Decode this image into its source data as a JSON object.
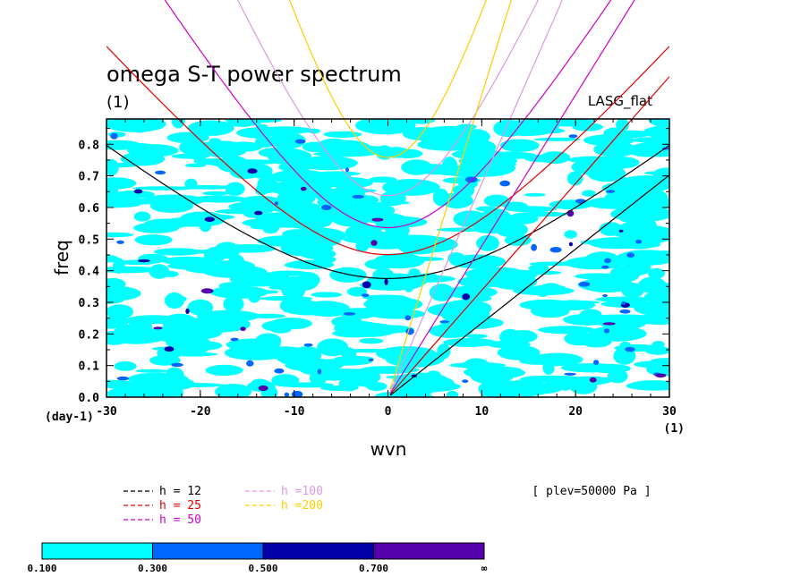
{
  "chart_data": {
    "type": "contour",
    "title": "omega S-T power spectrum",
    "subtitle": "(1)",
    "dataset_label": "LASG_flat",
    "xlabel": "wvn",
    "ylabel": "freq",
    "x_unit_label": "(1)",
    "y_unit_label": "(day-1)",
    "xlim": [
      -30,
      30
    ],
    "ylim": [
      0,
      0.88
    ],
    "x_ticks": [
      "-30",
      "-20",
      "-10",
      "0",
      "10",
      "20",
      "30"
    ],
    "y_ticks": [
      "0.0",
      "0.1",
      "0.2",
      "0.3",
      "0.4",
      "0.5",
      "0.6",
      "0.7",
      "0.8"
    ],
    "y_tick_values": [
      0,
      0.1,
      0.2,
      0.3,
      0.4,
      0.5,
      0.6,
      0.7,
      0.8
    ],
    "x_tick_values": [
      -30,
      -20,
      -10,
      0,
      10,
      20,
      30
    ],
    "annotation": "[ plev=50000 Pa ]",
    "dispersion_curves": [
      {
        "name": "h = 12",
        "h": 12,
        "color": "#000000"
      },
      {
        "name": "h = 25",
        "h": 25,
        "color": "#dd0000"
      },
      {
        "name": "h = 50",
        "h": 50,
        "color": "#cc00cc"
      },
      {
        "name": "h =100",
        "h": 100,
        "color": "#dd99dd"
      },
      {
        "name": "h =200",
        "h": 200,
        "color": "#ffcc00"
      }
    ],
    "colorbar": {
      "boundaries": [
        "0.100",
        "0.300",
        "0.500",
        "0.700",
        "∞"
      ],
      "colors": [
        "#00ffff",
        "#0066ff",
        "#0000aa",
        "#5500aa"
      ]
    },
    "contour_field_note": "noisy low-amplitude power, mostly 0.1–0.3 (cyan) with scattered 0.3–0.7 spots"
  }
}
